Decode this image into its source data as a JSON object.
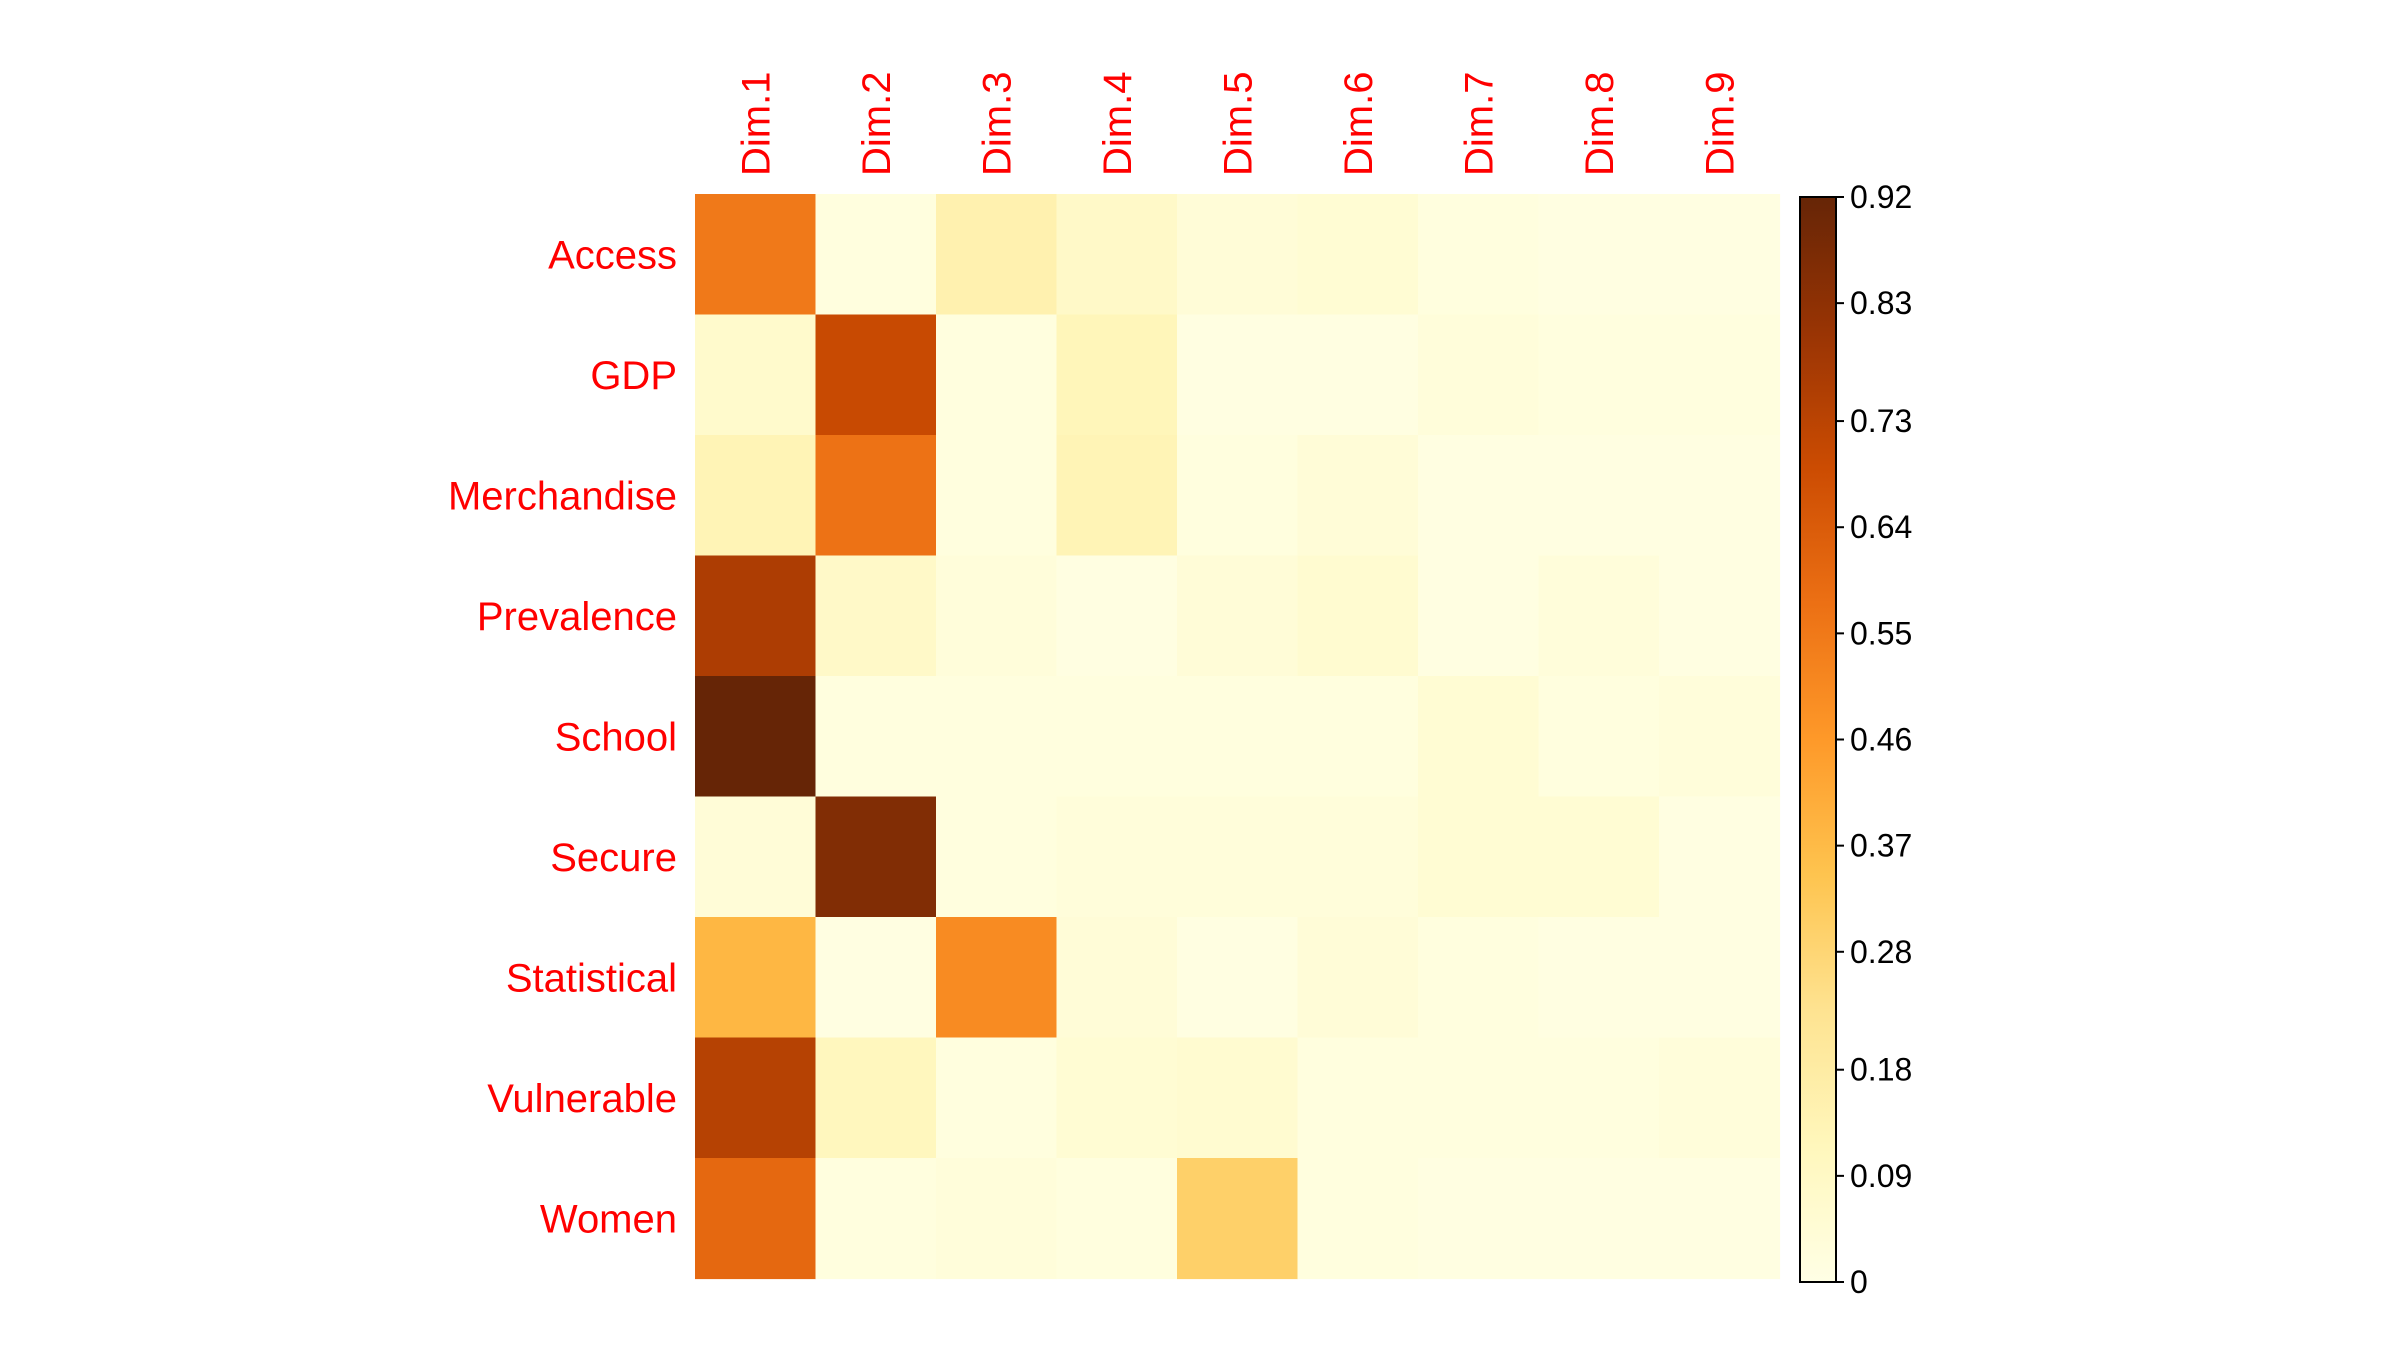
{
  "chart_data": {
    "type": "heatmap",
    "title": "",
    "rows": [
      "Access",
      "GDP",
      "Merchandise",
      "Prevalence",
      "School",
      "Secure",
      "Statistical",
      "Vulnerable",
      "Women"
    ],
    "columns": [
      "Dim.1",
      "Dim.2",
      "Dim.3",
      "Dim.4",
      "Dim.5",
      "Dim.6",
      "Dim.7",
      "Dim.8",
      "Dim.9"
    ],
    "values": [
      [
        0.55,
        0.02,
        0.15,
        0.08,
        0.04,
        0.05,
        0.02,
        0.01,
        0.01
      ],
      [
        0.07,
        0.7,
        0.02,
        0.12,
        0.01,
        0.01,
        0.03,
        0.02,
        0.02
      ],
      [
        0.13,
        0.57,
        0.02,
        0.13,
        0.02,
        0.04,
        0.01,
        0.01,
        0.01
      ],
      [
        0.76,
        0.08,
        0.03,
        0.01,
        0.04,
        0.06,
        0.01,
        0.03,
        0.01
      ],
      [
        0.92,
        0.02,
        0.02,
        0.02,
        0.02,
        0.02,
        0.05,
        0.02,
        0.03
      ],
      [
        0.04,
        0.86,
        0.02,
        0.03,
        0.03,
        0.03,
        0.05,
        0.05,
        0.01
      ],
      [
        0.38,
        0.01,
        0.5,
        0.04,
        0.01,
        0.04,
        0.02,
        0.01,
        0.01
      ],
      [
        0.74,
        0.11,
        0.02,
        0.05,
        0.06,
        0.02,
        0.02,
        0.02,
        0.03
      ],
      [
        0.6,
        0.02,
        0.03,
        0.02,
        0.3,
        0.02,
        0.01,
        0.01,
        0.01
      ]
    ],
    "colorbar": {
      "min": 0,
      "max": 0.92,
      "ticks": [
        "0.92",
        "0.83",
        "0.73",
        "0.64",
        "0.55",
        "0.46",
        "0.37",
        "0.28",
        "0.18",
        "0.09",
        "0"
      ],
      "tick_values": [
        0.92,
        0.83,
        0.73,
        0.64,
        0.55,
        0.46,
        0.37,
        0.28,
        0.18,
        0.09,
        0
      ]
    },
    "color_scale": [
      "#FFFFE5",
      "#FFF7BC",
      "#FEE391",
      "#FEC44F",
      "#FE9929",
      "#EC7014",
      "#CC4C02",
      "#993404",
      "#662506"
    ],
    "label_color": "#ff0000",
    "grid": false,
    "legend_placement": "right"
  }
}
